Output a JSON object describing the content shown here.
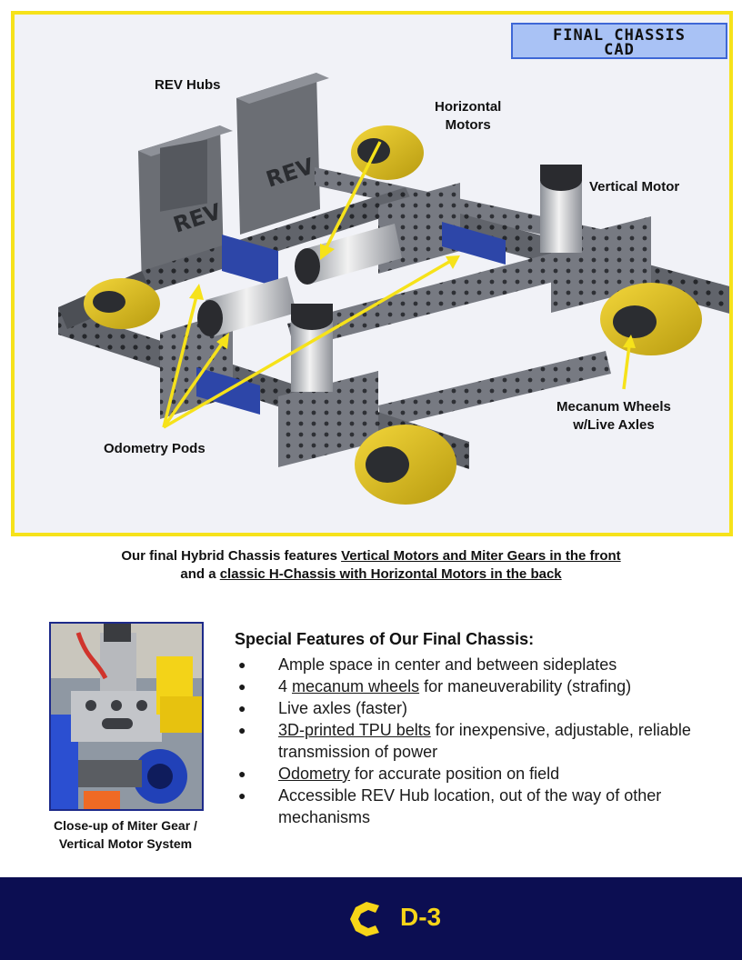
{
  "cad": {
    "title_line1": "FINAL CHASSIS",
    "title_line2": "CAD",
    "labels": {
      "rev_hubs": "REV Hubs",
      "horizontal_motors_line1": "Horizontal",
      "horizontal_motors_line2": "Motors",
      "vertical_motor": "Vertical Motor",
      "mecanum_line1": "Mecanum Wheels",
      "mecanum_line2": "w/Live Axles",
      "odometry_pods": "Odometry Pods"
    },
    "colors": {
      "frame": "#f6e21a",
      "arrow": "#f6e21a",
      "wheel": "#e3c21a",
      "channel": "#5d6066"
    }
  },
  "caption": {
    "line1_prefix": "Our final Hybrid Chassis features ",
    "line1_underlined": "Vertical Motors and Miter Gears in the front",
    "line2_prefix": "and a ",
    "line2_underlined": "classic H-Chassis with Horizontal Motors in the back"
  },
  "photo": {
    "caption_line1": "Close-up of Miter Gear /",
    "caption_line2": "Vertical Motor System"
  },
  "features": {
    "title": "Special Features of Our Final Chassis:",
    "bullet": "●",
    "items": [
      {
        "pre": "Ample space in center and between sideplates",
        "link": "",
        "post": ""
      },
      {
        "pre": "4 ",
        "link": "mecanum wheels",
        "post": " for maneuverability (strafing)"
      },
      {
        "pre": "Live axles (faster)",
        "link": "",
        "post": ""
      },
      {
        "pre": "",
        "link": "3D-printed TPU belts",
        "post": " for inexpensive, adjustable, reliable transmission of power"
      },
      {
        "pre": "",
        "link": "Odometry",
        "post": " for accurate position on field"
      },
      {
        "pre": "Accessible REV Hub location, out of the way of other mechanisms",
        "link": "",
        "post": ""
      }
    ]
  },
  "footer": {
    "page_label": "D-3",
    "logo_icon": "c-logo-icon",
    "background": "#0c0e52",
    "accent": "#f7d518"
  }
}
